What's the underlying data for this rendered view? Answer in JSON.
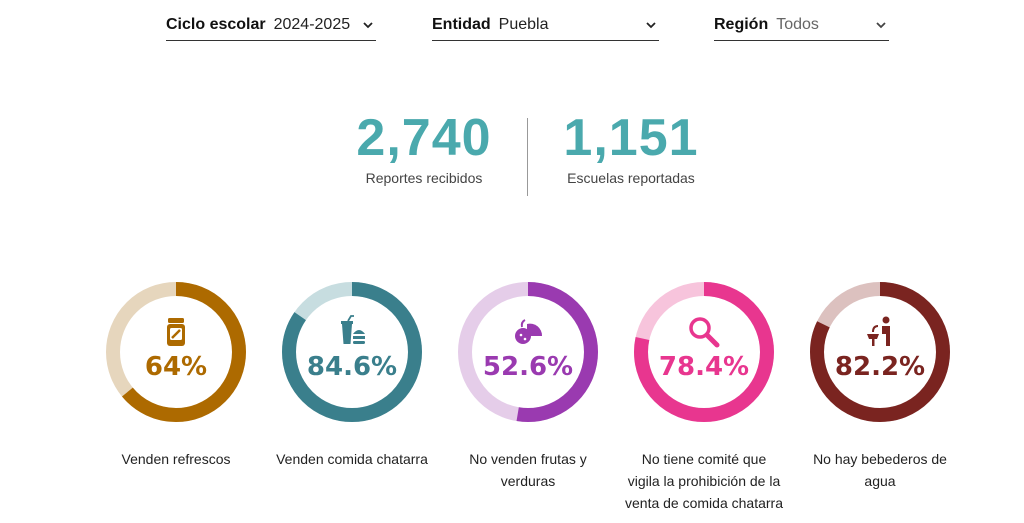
{
  "filters": [
    {
      "label": "Ciclo escolar",
      "value": "2024-2025"
    },
    {
      "label": "Entidad",
      "value": "Puebla"
    },
    {
      "label": "Región",
      "value": "Todos"
    }
  ],
  "stats": [
    {
      "value": "2,740",
      "label": "Reportes recibidos"
    },
    {
      "value": "1,151",
      "label": "Escuelas reportadas"
    }
  ],
  "indicators": [
    {
      "percent_text": "64%",
      "fraction": 0.64,
      "caption": "Venden refrescos",
      "icon": "soda-can-icon",
      "color": "#ad6a00",
      "track": "#e6d6bd"
    },
    {
      "percent_text": "84.6%",
      "fraction": 0.846,
      "caption": "Venden comida chatarra",
      "icon": "fast-food-icon",
      "color": "#3a7f8c",
      "track": "#c7dde0"
    },
    {
      "percent_text": "52.6%",
      "fraction": 0.526,
      "caption": "No venden frutas y verduras",
      "icon": "fruit-icon",
      "color": "#9a3ab0",
      "track": "#e5cde9"
    },
    {
      "percent_text": "78.4%",
      "fraction": 0.784,
      "caption": "No tiene comité que vigila la prohibición de la venta de comida chatarra",
      "icon": "magnifier-icon",
      "color": "#e8368f",
      "track": "#f7c4dc"
    },
    {
      "percent_text": "82.2%",
      "fraction": 0.822,
      "caption": "No hay bebederos de agua",
      "icon": "water-fountain-icon",
      "color": "#7a2420",
      "track": "#dcc1bf"
    }
  ]
}
